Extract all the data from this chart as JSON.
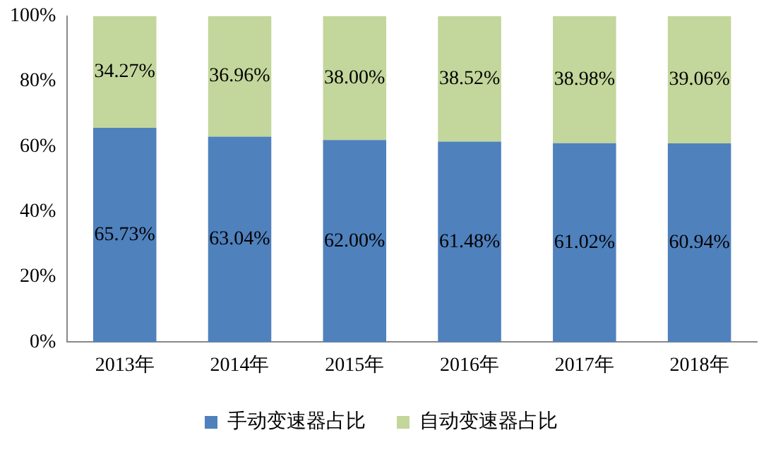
{
  "chart_data": {
    "type": "bar",
    "stacked": true,
    "categories": [
      "2013年",
      "2014年",
      "2015年",
      "2016年",
      "2017年",
      "2018年"
    ],
    "series": [
      {
        "name": "手动变速器占比",
        "color": "#4f81bd",
        "values": [
          65.73,
          63.04,
          62.0,
          61.48,
          61.02,
          60.94
        ],
        "value_labels": [
          "65.73%",
          "63.04%",
          "62.00%",
          "61.48%",
          "61.02%",
          "60.94%"
        ]
      },
      {
        "name": "自动变速器占比",
        "color": "#c3d69b",
        "values": [
          34.27,
          36.96,
          38.0,
          38.52,
          38.98,
          39.06
        ],
        "value_labels": [
          "34.27%",
          "36.96%",
          "38.00%",
          "38.52%",
          "38.98%",
          "39.06%"
        ]
      }
    ],
    "ylim": [
      0,
      100
    ],
    "yticks": [
      {
        "value": 0,
        "label": "0%"
      },
      {
        "value": 20,
        "label": "20%"
      },
      {
        "value": 40,
        "label": "40%"
      },
      {
        "value": 60,
        "label": "60%"
      },
      {
        "value": 80,
        "label": "80%"
      },
      {
        "value": 100,
        "label": "100%"
      }
    ],
    "grid": false,
    "legend": "bottom"
  }
}
